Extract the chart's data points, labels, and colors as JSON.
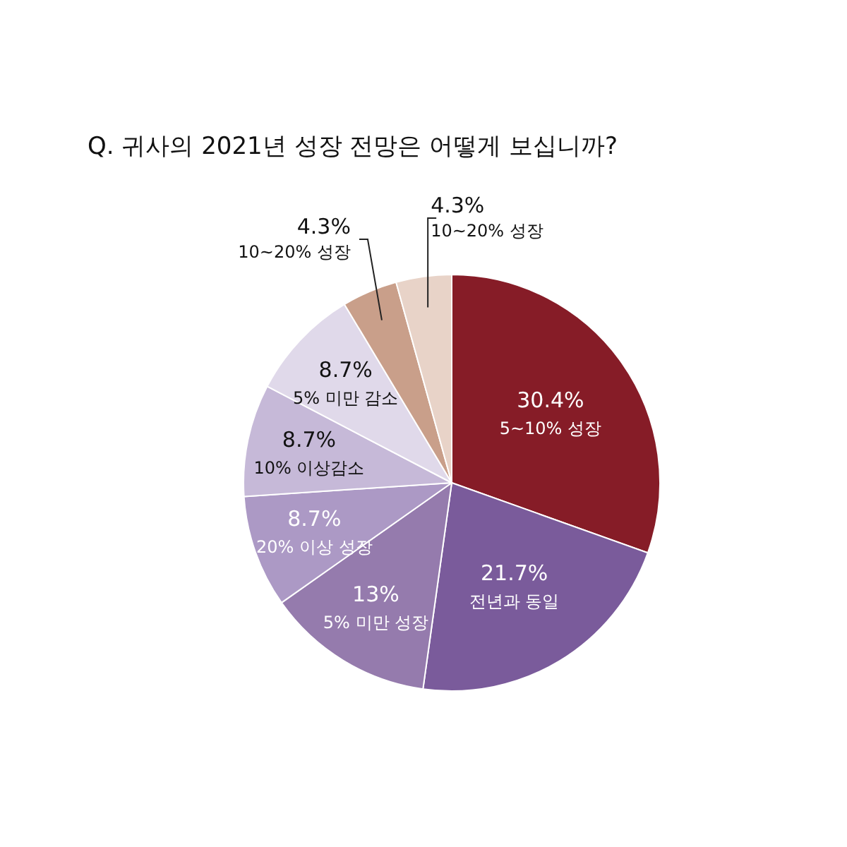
{
  "chart_data": {
    "type": "pie",
    "title": "Q. 귀사의 2021년 성장 전망은 어떻게 보십니까?",
    "categories": [
      "5~10% 성장",
      "전년과 동일",
      "5% 미만 성장",
      "20% 이상 성장",
      "10% 이상감소",
      "5% 미만 감소",
      "10~20% 성장",
      "10~20% 성장"
    ],
    "values": [
      30.4,
      21.7,
      13,
      8.7,
      8.7,
      8.7,
      4.3,
      4.3
    ],
    "value_labels": [
      "30.4%",
      "21.7%",
      "13%",
      "8.7%",
      "8.7%",
      "8.7%",
      "4.3%",
      "4.3%"
    ],
    "colors": [
      "#861c27",
      "#7a5b9b",
      "#957bad",
      "#ac99c5",
      "#c6b9d8",
      "#e0d9ea",
      "#c99f8a",
      "#e8d3c8"
    ],
    "legend": false
  }
}
